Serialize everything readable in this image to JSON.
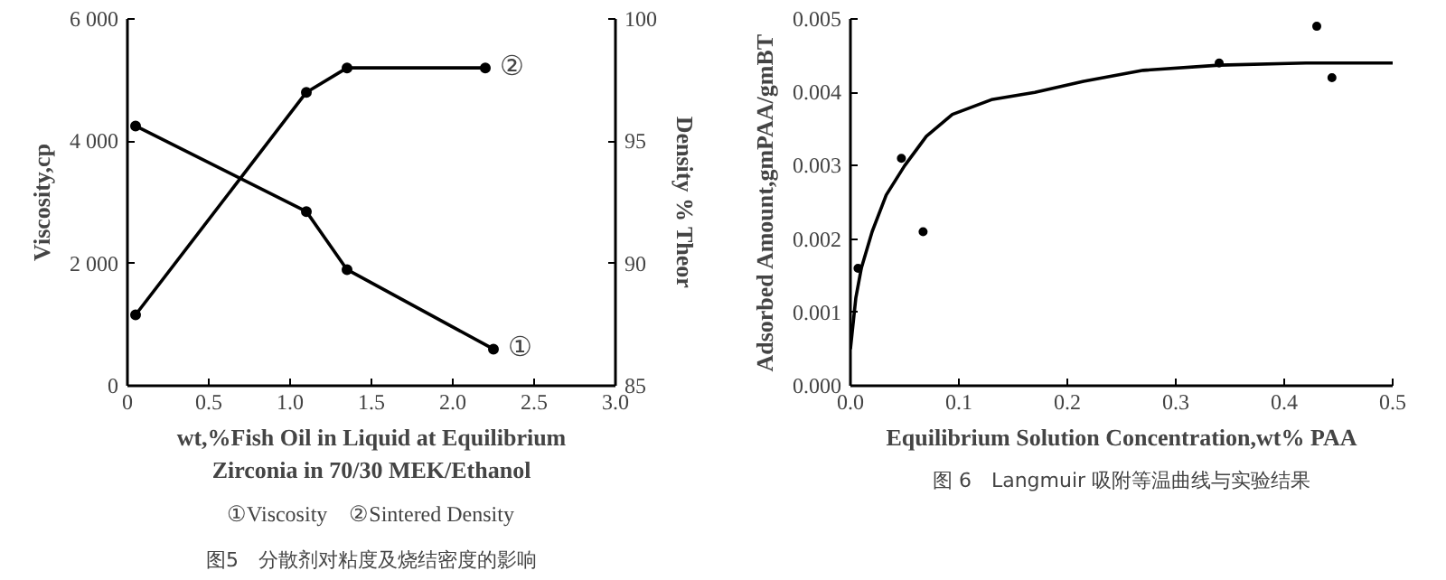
{
  "chart_data": [
    {
      "type": "line",
      "title": "图5　分散剂对粘度及烧结密度的影响",
      "subtitle": "①Viscosity　②Sintered Density",
      "xlabel": "wt,%Fish Oil in Liquid at Equilibrium\nZirconia in 70/30 MEK/Ethanol",
      "ylabel": "Viscosity,cp",
      "y2label": "Density % Theor",
      "xlim": [
        0,
        3.0
      ],
      "xticks": [
        0,
        0.5,
        {
          "value": 1,
          "label": "1.0"
        },
        1.5,
        {
          "value": 2,
          "label": "2.0"
        },
        2.5,
        {
          "value": 3,
          "label": "3.0"
        }
      ],
      "ylim": [
        0,
        6000
      ],
      "yticks": [
        {
          "value": 0,
          "label": "0"
        },
        {
          "value": 2000,
          "label": "2 000"
        },
        {
          "value": 4000,
          "label": "4 000"
        },
        {
          "value": 6000,
          "label": "6 000"
        }
      ],
      "y2lim": [
        85,
        100
      ],
      "y2ticks": [
        85,
        90,
        95,
        100
      ],
      "marker": "circle",
      "grid": false,
      "series": [
        {
          "name": "①",
          "color": "#000000",
          "x": [
            0.05,
            1.1,
            1.35,
            2.25
          ],
          "values": [
            4250,
            2850,
            1900,
            600
          ]
        },
        {
          "name": "②",
          "color": "#000000",
          "axis": "y2",
          "x": [
            0.05,
            1.1,
            1.35,
            2.2
          ],
          "values": [
            87.9,
            97.0,
            98.0,
            98.0
          ]
        }
      ]
    },
    {
      "type": "scatter",
      "title": "图 6　Langmuir 吸附等温曲线与实验结果",
      "xlabel": "Equilibrium Solution Concentration,wt% PAA",
      "ylabel": "Adsorbed Amount,gmPAA/gmBT",
      "xlim": [
        0,
        0.5
      ],
      "xticks": [
        {
          "value": 0,
          "label": "0.0"
        },
        0.1,
        0.2,
        0.3,
        0.4,
        0.5
      ],
      "ylim": [
        0,
        0.005
      ],
      "yticks": [
        {
          "value": 0,
          "label": "0.000"
        },
        0.001,
        0.002,
        0.003,
        0.004,
        0.005
      ],
      "grid": false,
      "series": [
        {
          "type": "scatter",
          "marker": "circle",
          "color": "#000000",
          "x": [
            0.007,
            0.047,
            0.067,
            0.34,
            0.43,
            0.444
          ],
          "values": [
            0.0016,
            0.0031,
            0.0021,
            0.0044,
            0.0049,
            0.0042
          ]
        },
        {
          "type": "line",
          "marker": "none",
          "color": "#000000",
          "x": [
            0,
            0.005,
            0.01,
            0.02,
            0.033,
            0.05,
            0.07,
            0.094,
            0.13,
            0.17,
            0.215,
            0.27,
            0.34,
            0.42,
            0.5
          ],
          "values": [
            0.0005,
            0.0012,
            0.0016,
            0.0021,
            0.0026,
            0.003,
            0.0034,
            0.0037,
            0.0039,
            0.004,
            0.00415,
            0.0043,
            0.00437,
            0.0044,
            0.0044
          ]
        }
      ]
    }
  ]
}
